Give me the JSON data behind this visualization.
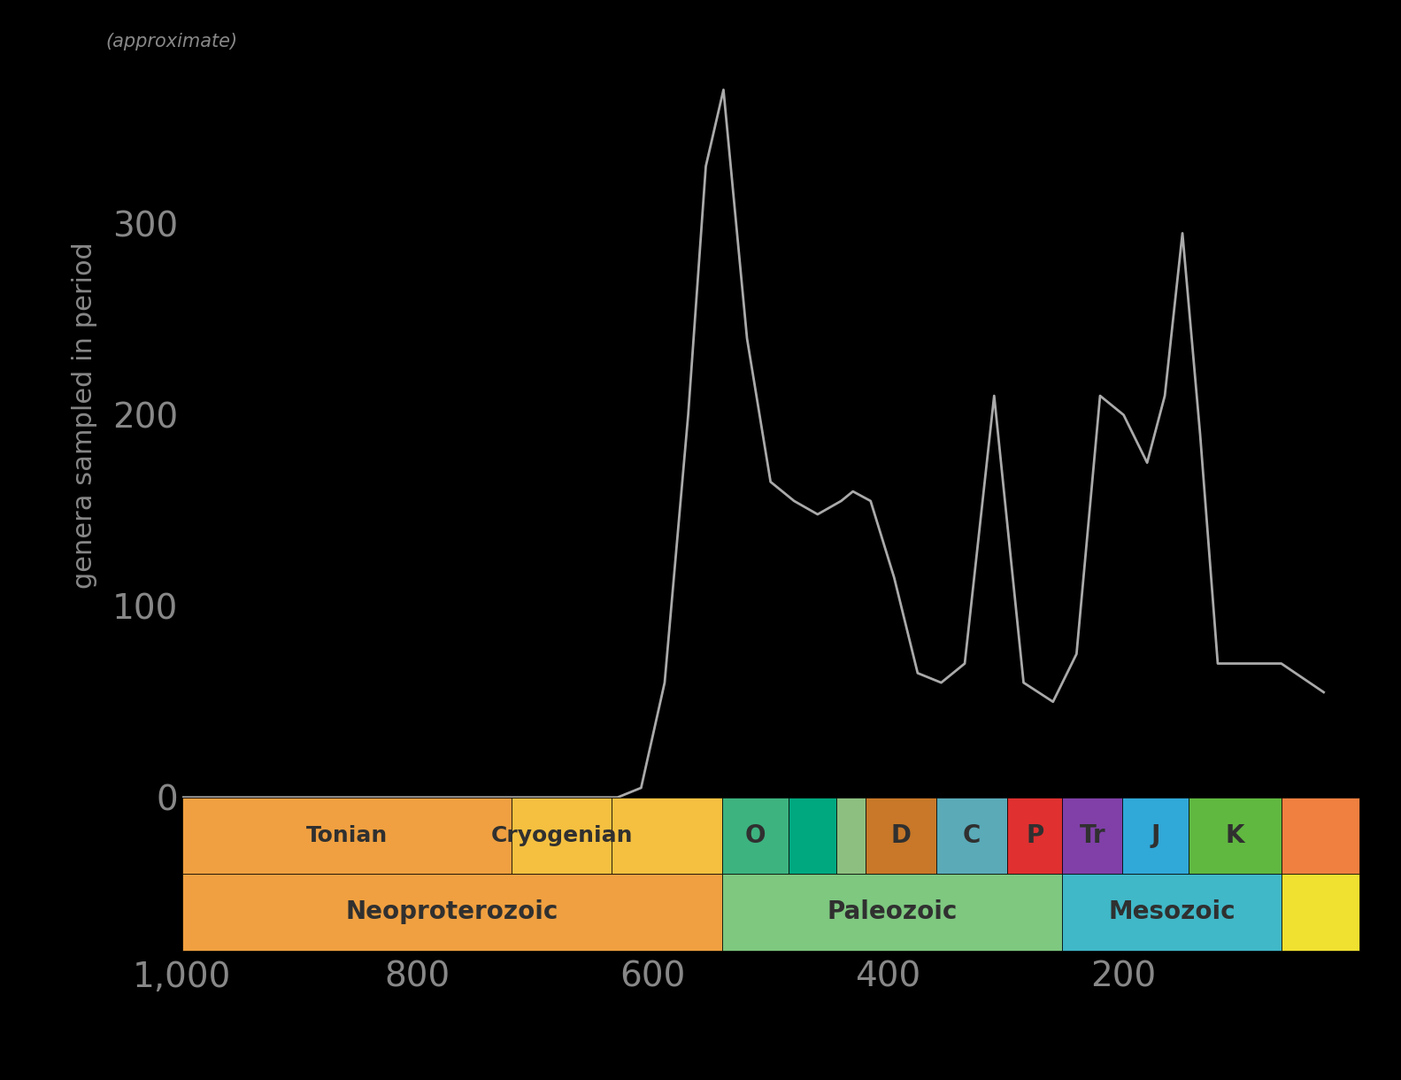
{
  "bg_color": "#000000",
  "line_color": "#aaaaaa",
  "text_color": "#888888",
  "ylabel": "genera sampled in period",
  "ylabel_note": "(approximate)",
  "xlim": [
    1000,
    0
  ],
  "ylim": [
    0,
    400
  ],
  "xticks": [
    1000,
    800,
    600,
    400,
    200
  ],
  "yticks": [
    0,
    100,
    200,
    300
  ],
  "tick_color": "#888888",
  "tick_fontsize": 28,
  "line_x": [
    1000,
    650,
    630,
    610,
    590,
    570,
    555,
    540,
    520,
    500,
    480,
    460,
    440,
    430,
    415,
    395,
    375,
    355,
    335,
    310,
    285,
    260,
    252,
    240,
    220,
    200,
    180,
    165,
    150,
    135,
    120,
    66,
    30
  ],
  "line_y": [
    0,
    0,
    0,
    5,
    60,
    200,
    330,
    370,
    240,
    165,
    155,
    148,
    155,
    160,
    155,
    115,
    65,
    60,
    70,
    210,
    60,
    50,
    60,
    75,
    210,
    200,
    175,
    210,
    295,
    190,
    70,
    70,
    55
  ],
  "top_periods": [
    {
      "label": "Tonian",
      "start": 1000,
      "end": 720,
      "color": "#F0A040"
    },
    {
      "label": "Cryogenian",
      "start": 720,
      "end": 635,
      "color": "#F5C040"
    },
    {
      "label": "",
      "start": 635,
      "end": 541,
      "color": "#F5C040"
    },
    {
      "label": "O",
      "start": 541,
      "end": 485,
      "color": "#3DB380"
    },
    {
      "label": "",
      "start": 485,
      "end": 444,
      "color": "#00A880"
    },
    {
      "label": "",
      "start": 444,
      "end": 419,
      "color": "#8DC080"
    },
    {
      "label": "D",
      "start": 419,
      "end": 359,
      "color": "#C87828"
    },
    {
      "label": "C",
      "start": 359,
      "end": 299,
      "color": "#5AAAB8"
    },
    {
      "label": "P",
      "start": 299,
      "end": 252,
      "color": "#E03030"
    },
    {
      "label": "Tr",
      "start": 252,
      "end": 201,
      "color": "#8040A8"
    },
    {
      "label": "J",
      "start": 201,
      "end": 145,
      "color": "#30A8D8"
    },
    {
      "label": "K",
      "start": 145,
      "end": 66,
      "color": "#60B840"
    },
    {
      "label": "",
      "start": 66,
      "end": 0,
      "color": "#F08040"
    }
  ],
  "bot_periods": [
    {
      "label": "Neoproterozoic",
      "start": 1000,
      "end": 541,
      "color": "#F0A040"
    },
    {
      "label": "Paleozoic",
      "start": 541,
      "end": 252,
      "color": "#7EC880"
    },
    {
      "label": "Mesozoic",
      "start": 252,
      "end": 66,
      "color": "#40B8C8"
    },
    {
      "label": "",
      "start": 66,
      "end": 0,
      "color": "#F0E030"
    }
  ]
}
